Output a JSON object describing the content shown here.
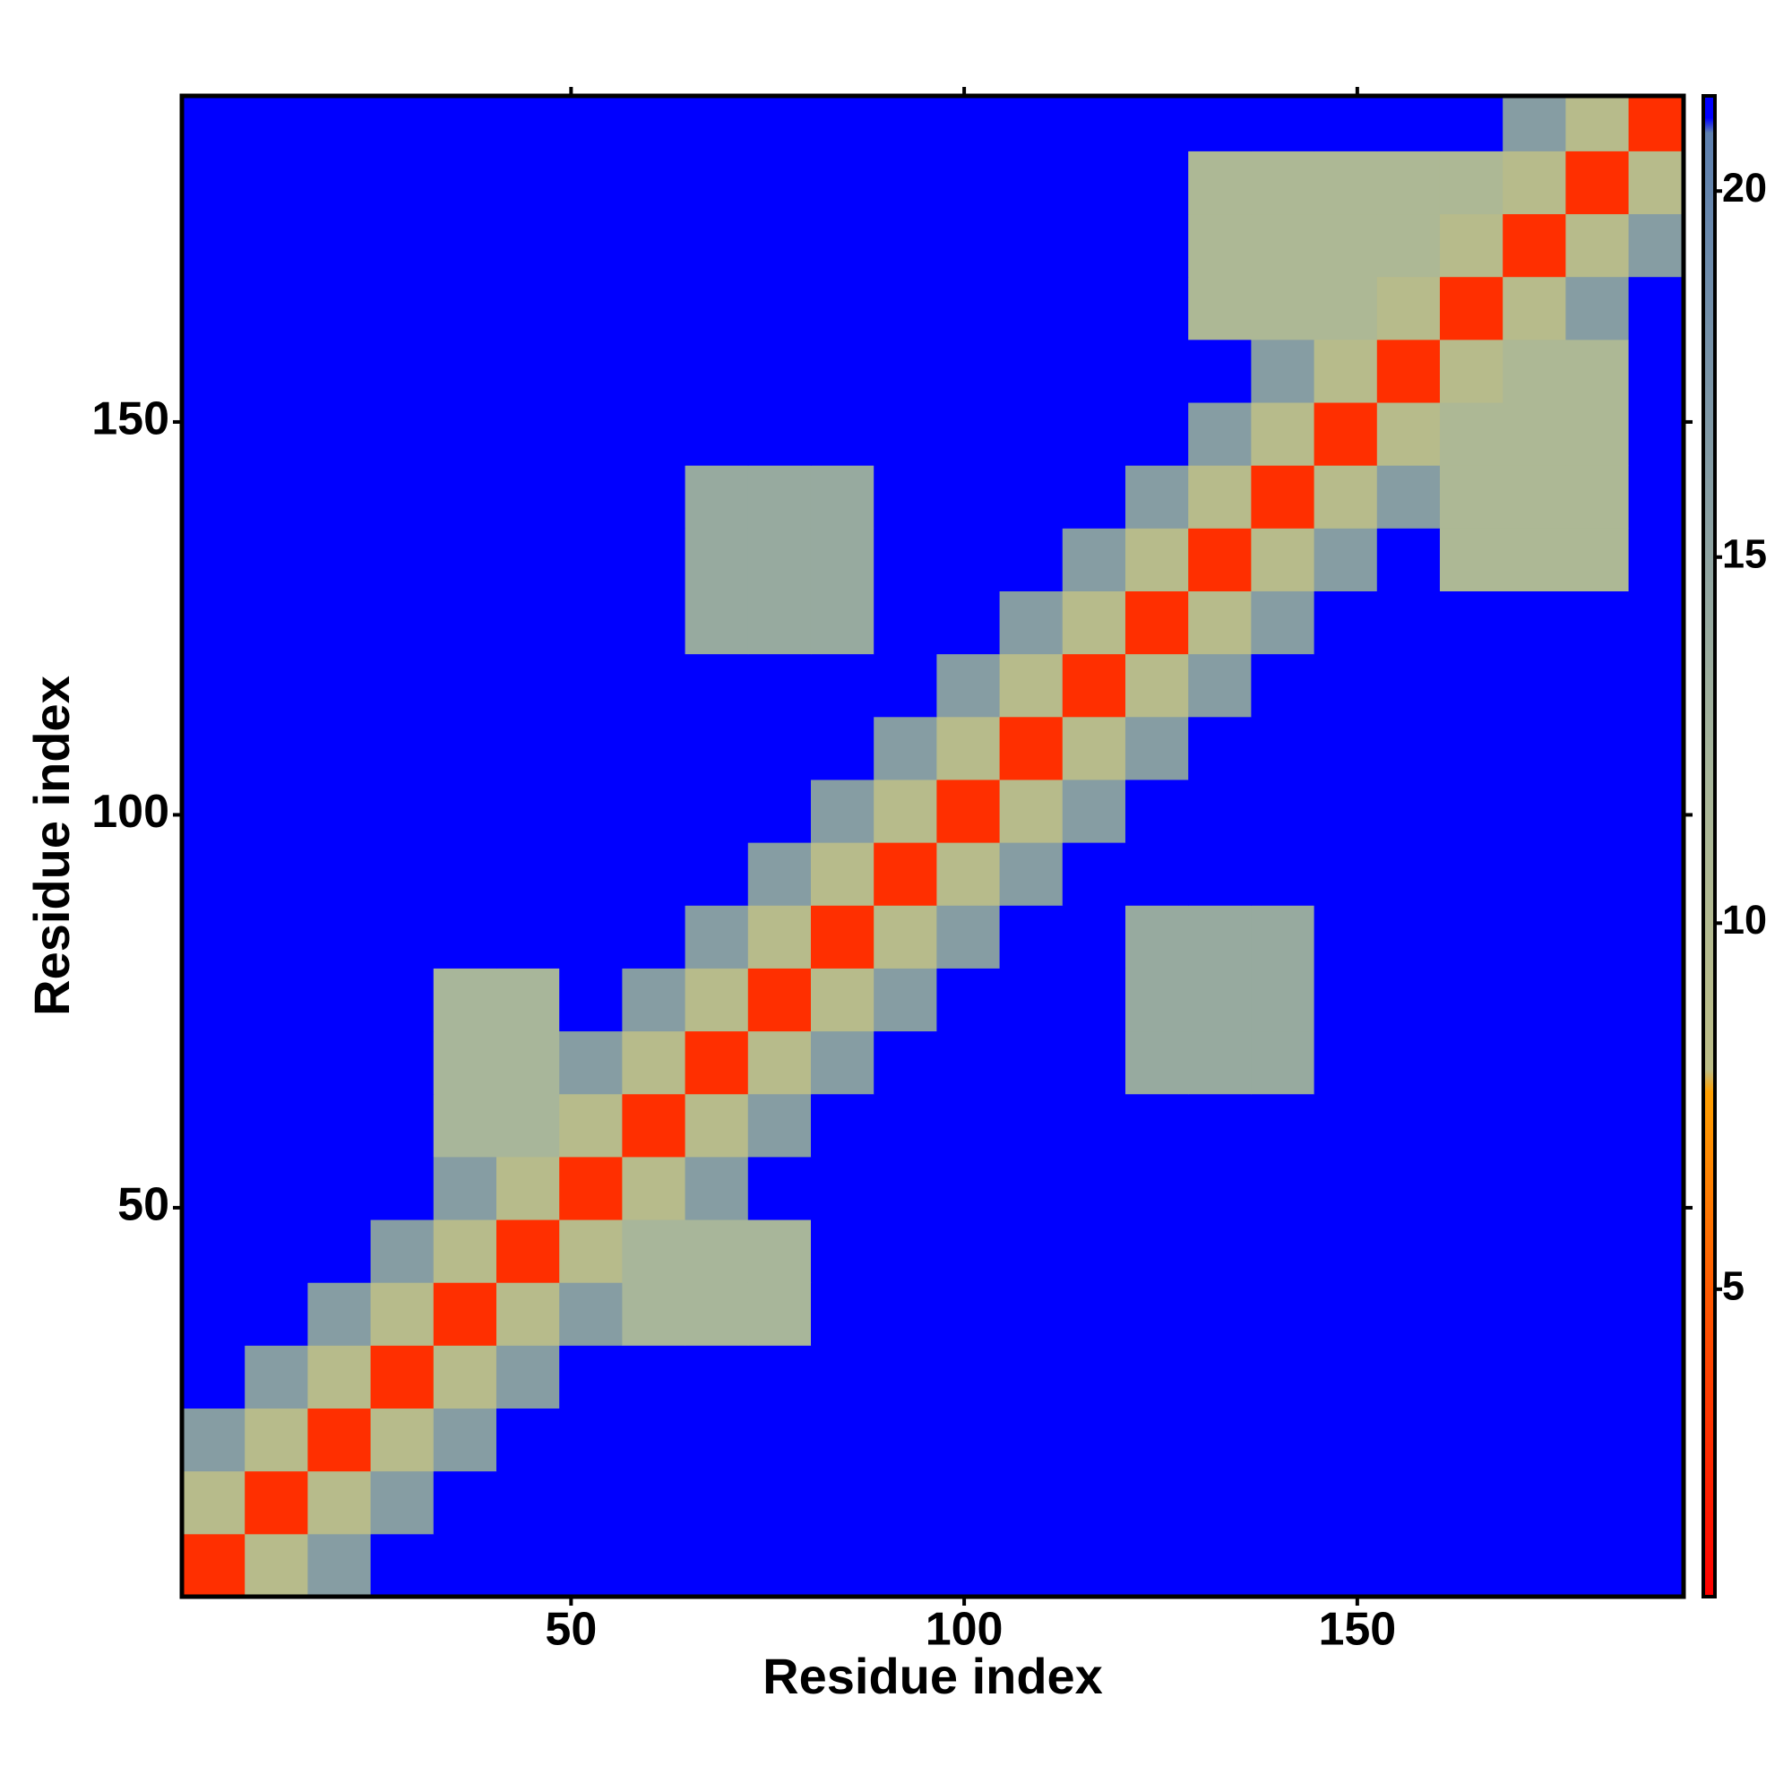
{
  "chart_data": {
    "type": "heatmap",
    "x_label": "Residue index",
    "y_label": "Residue index",
    "xlim": [
      0.5,
      191.5
    ],
    "ylim": [
      0.5,
      191.5
    ],
    "xticks": [
      50,
      100,
      150
    ],
    "yticks": [
      50,
      100,
      150
    ],
    "clim": [
      0.8,
      21.3
    ],
    "cticks": [
      5,
      10,
      15,
      20
    ],
    "colorscale": [
      {
        "value": 0.8,
        "color": "#ff0000"
      },
      {
        "value": 5,
        "color": "#ff5a00"
      },
      {
        "value": 7.7,
        "color": "#ffa000"
      },
      {
        "value": 8,
        "color": "#bcbd86"
      },
      {
        "value": 12,
        "color": "#a8b69a"
      },
      {
        "value": 20.8,
        "color": "#5d7fae"
      },
      {
        "value": 21,
        "color": "#0000ff"
      },
      {
        "value": 21.3,
        "color": "#0000ff"
      }
    ],
    "x": [
      4.5,
      12.5,
      20.5,
      28.5,
      36.5,
      44.5,
      52.5,
      60.5,
      68.5,
      76.5,
      84.5,
      92.5,
      100.5,
      108.5,
      116.5,
      124.5,
      132.5,
      140.5,
      148.5,
      156.5,
      164.5,
      172.5,
      180.5,
      188.5
    ],
    "y": [
      4.5,
      12.5,
      20.5,
      28.5,
      36.5,
      44.5,
      52.5,
      60.5,
      68.5,
      76.5,
      84.5,
      92.5,
      100.5,
      108.5,
      116.5,
      124.5,
      132.5,
      140.5,
      148.5,
      156.5,
      164.5,
      172.5,
      180.5,
      188.5
    ],
    "values": [
      [
        3,
        9,
        16,
        21,
        21,
        21,
        21,
        21,
        21,
        21,
        21,
        21,
        21,
        21,
        21,
        21,
        21,
        21,
        21,
        21,
        21,
        21,
        21,
        21
      ],
      [
        9,
        3,
        9,
        16,
        21,
        21,
        21,
        21,
        21,
        21,
        21,
        21,
        21,
        21,
        21,
        21,
        21,
        21,
        21,
        21,
        21,
        21,
        21,
        21
      ],
      [
        16,
        9,
        3,
        9,
        16,
        21,
        21,
        21,
        21,
        21,
        21,
        21,
        21,
        21,
        21,
        21,
        21,
        21,
        21,
        21,
        21,
        21,
        21,
        21
      ],
      [
        21,
        16,
        9,
        3,
        9,
        16,
        21,
        21,
        21,
        21,
        21,
        21,
        21,
        21,
        21,
        21,
        21,
        21,
        21,
        21,
        21,
        21,
        21,
        21
      ],
      [
        21,
        21,
        16,
        9,
        3,
        9,
        16,
        12,
        12,
        12,
        21,
        21,
        21,
        21,
        21,
        21,
        21,
        21,
        21,
        21,
        21,
        21,
        21,
        21
      ],
      [
        21,
        21,
        21,
        16,
        9,
        3,
        9,
        12,
        12,
        12,
        21,
        21,
        21,
        21,
        21,
        21,
        21,
        21,
        21,
        21,
        21,
        21,
        21,
        21
      ],
      [
        21,
        21,
        21,
        21,
        16,
        9,
        3,
        9,
        16,
        21,
        21,
        21,
        21,
        21,
        21,
        21,
        21,
        21,
        21,
        21,
        21,
        21,
        21,
        21
      ],
      [
        21,
        21,
        21,
        21,
        12,
        12,
        9,
        3,
        9,
        16,
        21,
        21,
        21,
        21,
        21,
        21,
        21,
        21,
        21,
        21,
        21,
        21,
        21,
        21
      ],
      [
        21,
        21,
        21,
        21,
        12,
        12,
        16,
        9,
        3,
        9,
        16,
        21,
        21,
        21,
        21,
        14,
        14,
        14,
        21,
        21,
        21,
        21,
        21,
        21
      ],
      [
        21,
        21,
        21,
        21,
        12,
        12,
        21,
        16,
        9,
        3,
        9,
        16,
        21,
        21,
        21,
        14,
        14,
        14,
        21,
        21,
        21,
        21,
        21,
        21
      ],
      [
        21,
        21,
        21,
        21,
        21,
        21,
        21,
        21,
        16,
        9,
        3,
        9,
        16,
        21,
        21,
        14,
        14,
        14,
        21,
        21,
        21,
        21,
        21,
        21
      ],
      [
        21,
        21,
        21,
        21,
        21,
        21,
        21,
        21,
        21,
        16,
        9,
        3,
        9,
        16,
        21,
        21,
        21,
        21,
        21,
        21,
        21,
        21,
        21,
        21
      ],
      [
        21,
        21,
        21,
        21,
        21,
        21,
        21,
        21,
        21,
        21,
        16,
        9,
        3,
        9,
        16,
        21,
        21,
        21,
        21,
        21,
        21,
        21,
        21,
        21
      ],
      [
        21,
        21,
        21,
        21,
        21,
        21,
        21,
        21,
        21,
        21,
        21,
        16,
        9,
        3,
        9,
        16,
        21,
        21,
        21,
        21,
        21,
        21,
        21,
        21
      ],
      [
        21,
        21,
        21,
        21,
        21,
        21,
        21,
        21,
        21,
        21,
        21,
        21,
        16,
        9,
        3,
        9,
        16,
        21,
        21,
        21,
        21,
        21,
        21,
        21
      ],
      [
        21,
        21,
        21,
        21,
        21,
        21,
        21,
        21,
        14,
        14,
        14,
        21,
        21,
        16,
        9,
        3,
        9,
        16,
        21,
        21,
        21,
        21,
        21,
        21
      ],
      [
        21,
        21,
        21,
        21,
        21,
        21,
        21,
        21,
        14,
        14,
        14,
        21,
        21,
        21,
        16,
        9,
        3,
        9,
        16,
        21,
        11,
        11,
        11,
        21
      ],
      [
        21,
        21,
        21,
        21,
        21,
        21,
        21,
        21,
        14,
        14,
        14,
        21,
        21,
        21,
        21,
        16,
        9,
        3,
        9,
        16,
        11,
        11,
        11,
        21
      ],
      [
        21,
        21,
        21,
        21,
        21,
        21,
        21,
        21,
        21,
        21,
        21,
        21,
        21,
        21,
        21,
        21,
        16,
        9,
        3,
        9,
        11,
        11,
        11,
        21
      ],
      [
        21,
        21,
        21,
        21,
        21,
        21,
        21,
        21,
        21,
        21,
        21,
        21,
        21,
        21,
        21,
        21,
        21,
        16,
        9,
        3,
        9,
        11,
        11,
        21
      ],
      [
        21,
        21,
        21,
        21,
        21,
        21,
        21,
        21,
        21,
        21,
        21,
        21,
        21,
        21,
        21,
        21,
        11,
        11,
        11,
        9,
        3,
        9,
        16,
        21
      ],
      [
        21,
        21,
        21,
        21,
        21,
        21,
        21,
        21,
        21,
        21,
        21,
        21,
        21,
        21,
        21,
        21,
        11,
        11,
        11,
        11,
        9,
        3,
        9,
        16
      ],
      [
        21,
        21,
        21,
        21,
        21,
        21,
        21,
        21,
        21,
        21,
        21,
        21,
        21,
        21,
        21,
        21,
        11,
        11,
        11,
        11,
        11,
        9,
        3,
        9
      ],
      [
        21,
        21,
        21,
        21,
        21,
        21,
        21,
        21,
        21,
        21,
        21,
        21,
        21,
        21,
        21,
        21,
        21,
        21,
        21,
        21,
        21,
        16,
        9,
        3
      ]
    ]
  }
}
